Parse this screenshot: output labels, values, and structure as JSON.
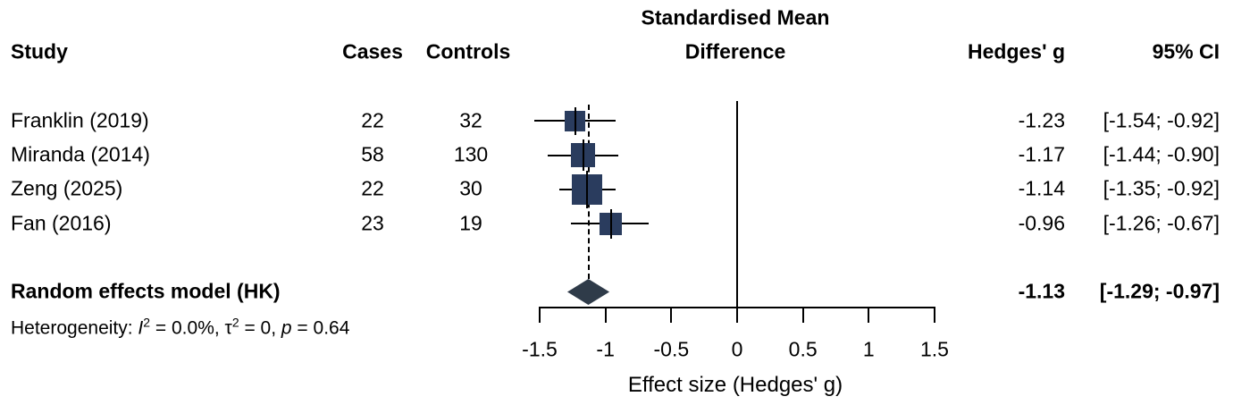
{
  "headers": {
    "study": "Study",
    "cases": "Cases",
    "controls": "Controls",
    "smd_line1": "Standardised Mean",
    "smd_line2": "Difference",
    "hedges_g": "Hedges' g",
    "ci": "95% CI"
  },
  "studies": [
    {
      "name": "Franklin (2019)",
      "cases": "22",
      "controls": "32",
      "g": "-1.23",
      "ci": "[-1.54; -0.92]"
    },
    {
      "name": "Miranda (2014)",
      "cases": "58",
      "controls": "130",
      "g": "-1.17",
      "ci": "[-1.44; -0.90]"
    },
    {
      "name": "Zeng (2025)",
      "cases": "22",
      "controls": "30",
      "g": "-1.14",
      "ci": "[-1.35; -0.92]"
    },
    {
      "name": "Fan (2016)",
      "cases": "23",
      "controls": "19",
      "g": "-0.96",
      "ci": "[-1.26; -0.67]"
    }
  ],
  "summary": {
    "label": "Random effects model (HK)",
    "g": "-1.13",
    "ci": "[-1.29; -0.97]",
    "het_prefix": "Heterogeneity: ",
    "i_label": "I",
    "sup_two": "2",
    "i_value": " = 0.0%, ",
    "tau_label": "τ",
    "tau_value": " = 0, ",
    "p_label": "p",
    "p_value": " = 0.64"
  },
  "chart_data": {
    "type": "forest",
    "title": "Standardised Mean Difference",
    "xlabel": "Effect size (Hedges' g)",
    "xlim": [
      -1.5,
      1.5
    ],
    "xticks": [
      -1.5,
      -1,
      -0.5,
      0,
      0.5,
      1,
      1.5
    ],
    "xtick_labels": [
      "-1.5",
      "-1",
      "-0.5",
      "0",
      "0.5",
      "1",
      "1.5"
    ],
    "zero_line": 0,
    "series": [
      {
        "study": "Franklin (2019)",
        "g": -1.23,
        "ci_low": -1.54,
        "ci_high": -0.92,
        "cases": 22,
        "controls": 32
      },
      {
        "study": "Miranda (2014)",
        "g": -1.17,
        "ci_low": -1.44,
        "ci_high": -0.9,
        "cases": 58,
        "controls": 130
      },
      {
        "study": "Zeng (2025)",
        "g": -1.14,
        "ci_low": -1.35,
        "ci_high": -0.92,
        "cases": 22,
        "controls": 30
      },
      {
        "study": "Fan (2016)",
        "g": -0.96,
        "ci_low": -1.26,
        "ci_high": -0.67,
        "cases": 23,
        "controls": 19
      }
    ],
    "summary": {
      "label": "Random effects model (HK)",
      "g": -1.13,
      "ci_low": -1.29,
      "ci_high": -0.97
    },
    "heterogeneity": {
      "I2": "0.0%",
      "tau2": "0",
      "p": "0.64"
    },
    "marker_color": "#2a3c5e",
    "diamond_color": "#2f3b49",
    "line_color": "#000000",
    "legend": "none",
    "grid": false
  }
}
